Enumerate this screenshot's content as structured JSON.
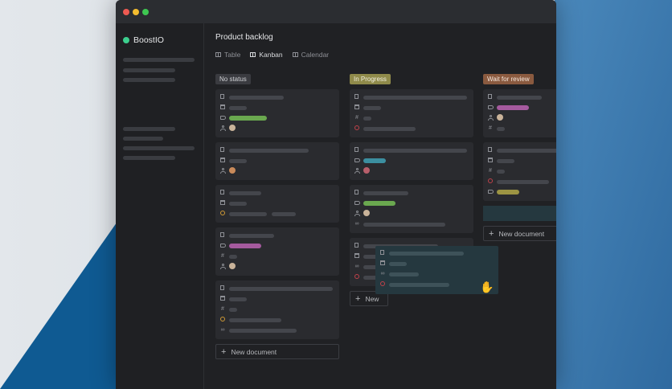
{
  "sidebar": {
    "brand": "BoostIO",
    "brand_color": "#3ccf8e"
  },
  "main": {
    "title": "Product backlog",
    "views": [
      {
        "label": "Table"
      },
      {
        "label": "Kanban"
      },
      {
        "label": "Calendar"
      }
    ],
    "columns": [
      {
        "status": "No status",
        "badge_color": "#3a3b40",
        "new_document": "New document"
      },
      {
        "status": "In Progress",
        "badge_color": "#8f8a4a",
        "new_document": "New"
      },
      {
        "status": "Wait for review",
        "badge_color": "#8a5a3f",
        "new_document": "New document"
      }
    ]
  },
  "colors": {
    "green_tag": "#6aa84f",
    "purple_tag": "#a55a9e",
    "teal_tag": "#3c8fa0",
    "olive_tag": "#9c9443"
  }
}
